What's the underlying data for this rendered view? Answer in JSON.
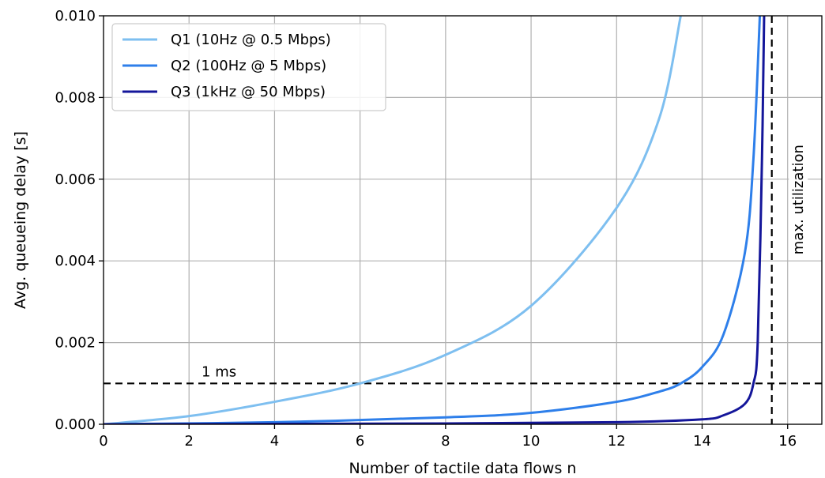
{
  "chart_data": {
    "type": "line",
    "xlabel": "Number of tactile data flows n",
    "ylabel": "Avg. queueing delay [s]",
    "xlim": [
      0,
      16.8
    ],
    "ylim": [
      0,
      0.01
    ],
    "x_ticks": [
      0,
      2,
      4,
      6,
      8,
      10,
      12,
      14,
      16
    ],
    "x_tick_labels": [
      "0",
      "2",
      "4",
      "6",
      "8",
      "10",
      "12",
      "14",
      "16"
    ],
    "y_ticks": [
      0,
      0.002,
      0.004,
      0.006,
      0.008,
      0.01
    ],
    "y_tick_labels": [
      "0.000",
      "0.002",
      "0.004",
      "0.006",
      "0.008",
      "0.010"
    ],
    "grid": true,
    "legend_position": "top-left",
    "series": [
      {
        "name": "Q1 (10Hz @ 0.5 Mbps)",
        "color": "#7ebff0",
        "x": [
          0,
          2,
          4,
          6,
          8,
          10,
          12,
          13,
          13.5
        ],
        "y": [
          0,
          0.0002,
          0.00055,
          0.001,
          0.0017,
          0.0029,
          0.0053,
          0.0075,
          0.01
        ]
      },
      {
        "name": "Q2 (100Hz @ 5 Mbps)",
        "color": "#2e7fea",
        "x": [
          0,
          4,
          8,
          10,
          12,
          13,
          13.5,
          14,
          14.5,
          15,
          15.2,
          15.35
        ],
        "y": [
          0,
          5e-05,
          0.00017,
          0.00028,
          0.00055,
          0.0008,
          0.001,
          0.0014,
          0.0022,
          0.0042,
          0.0065,
          0.01
        ]
      },
      {
        "name": "Q3 (1kHz @ 50 Mbps)",
        "color": "#14169a",
        "x": [
          0,
          8,
          12,
          14,
          14.5,
          15,
          15.2,
          15.3,
          15.4,
          15.45
        ],
        "y": [
          0,
          2e-05,
          5e-05,
          0.00012,
          0.00022,
          0.0005,
          0.001,
          0.002,
          0.0065,
          0.01
        ]
      }
    ],
    "reference_lines": [
      {
        "orientation": "horizontal",
        "value": 0.001,
        "label": "1 ms",
        "style": "dashed",
        "color": "#000000"
      },
      {
        "orientation": "vertical",
        "value": 15.63,
        "label": "max. utilization",
        "style": "dashed",
        "color": "#000000"
      }
    ]
  }
}
